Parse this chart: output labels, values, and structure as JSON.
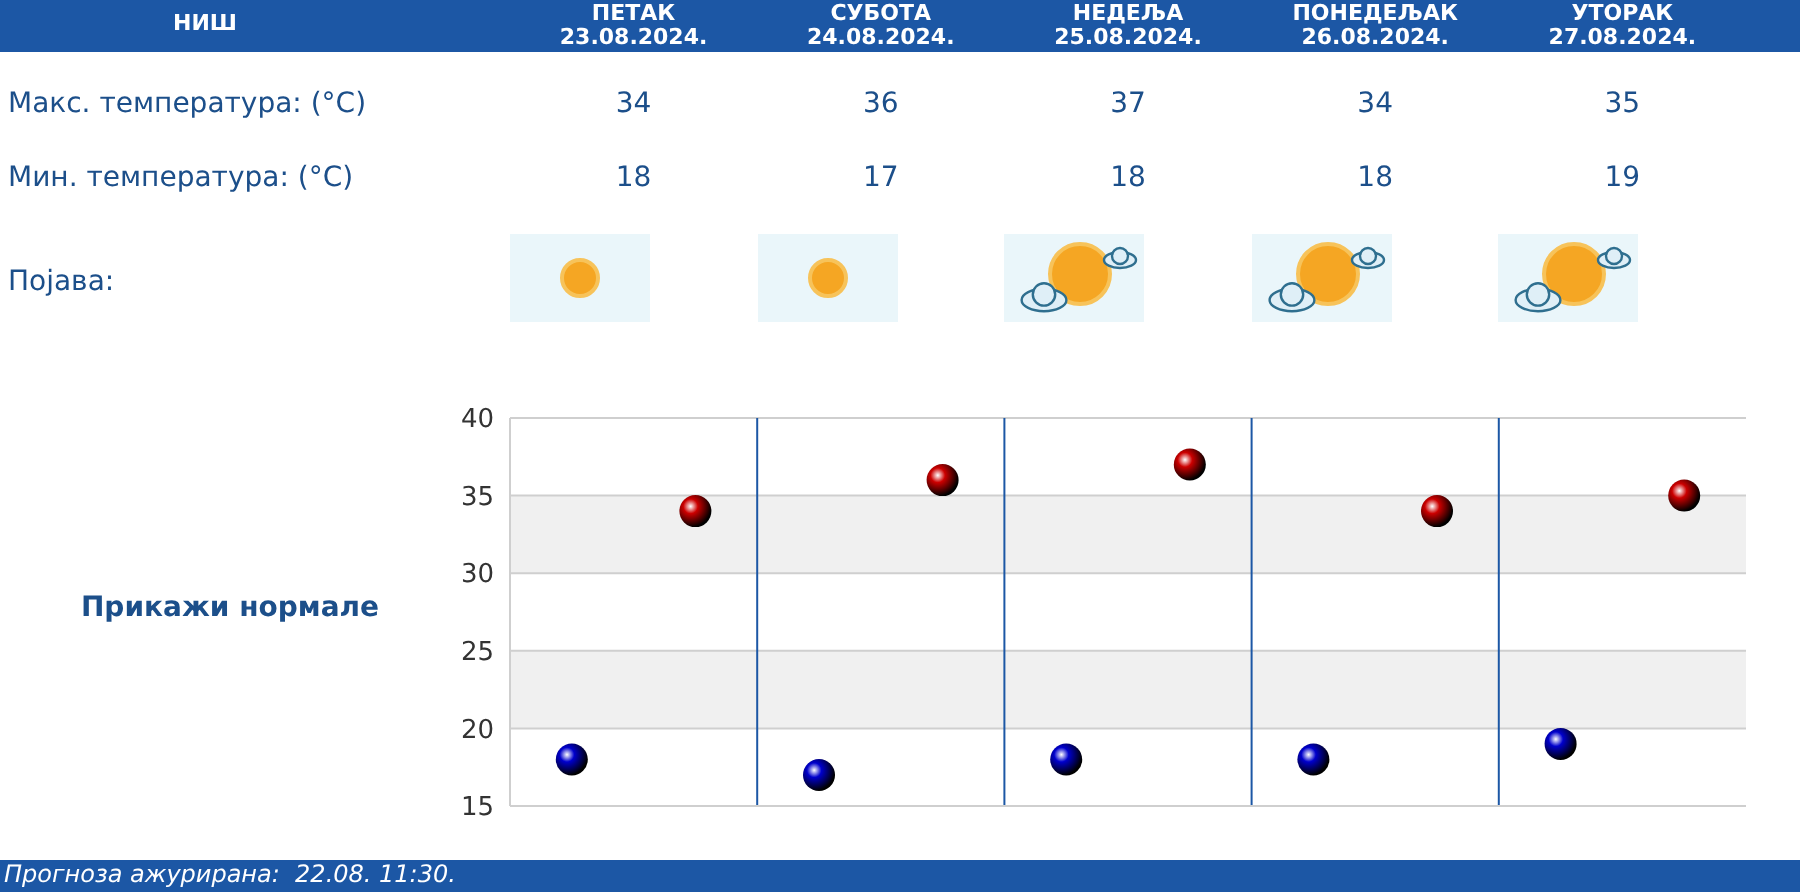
{
  "chart_data": {
    "type": "scatter",
    "title": "НИШ",
    "categories": [
      null,
      null,
      null,
      null,
      null
    ],
    "series": [
      {
        "color": "#cc0000",
        "values": [
          34,
          36,
          37,
          34,
          35
        ]
      },
      {
        "color": "#0000cc",
        "values": [
          18,
          17,
          18,
          18,
          19
        ]
      }
    ],
    "ylim": [
      15,
      40
    ],
    "yticks": [
      15,
      20,
      25,
      30,
      35,
      40
    ],
    "grid": true,
    "tick_labels": "y",
    "data_labels": true,
    "marker": "circle",
    "legend": false,
    "annotations": [
      "ПЕТАК 23.08.2024.",
      "СУБОТА 24.08.2024.",
      "НЕДЕЉА 25.08.2024.",
      "ПОНЕДЕЉАК 26.08.2024.",
      "УТОРАК 27.08.2024.",
      "Макс. температура: (°C)",
      "Мин. температура: (°C)",
      "Појава:",
      "Прикажи нормале",
      "Прогноза ажурирана:  22.08. 11:30."
    ]
  }
}
